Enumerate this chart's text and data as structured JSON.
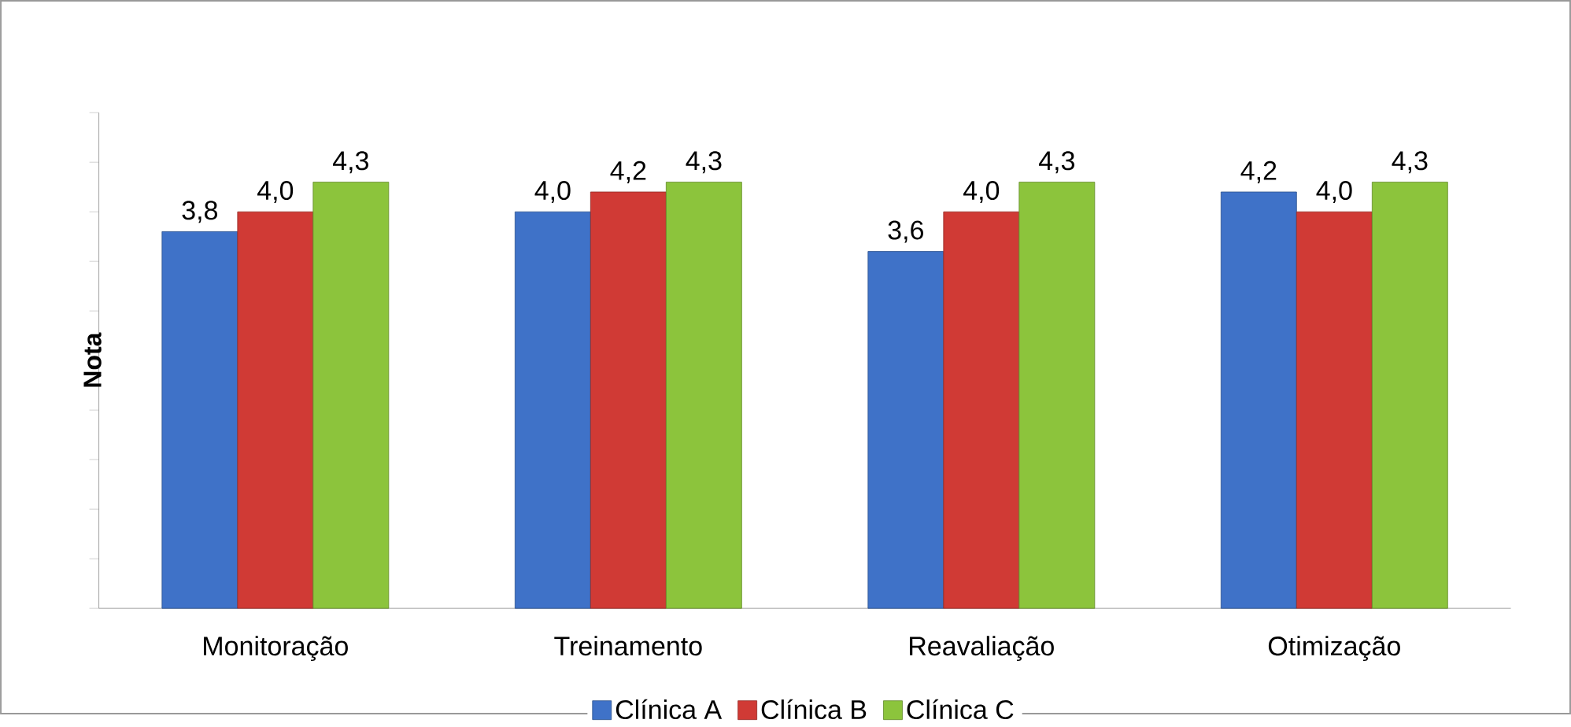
{
  "chart_data": {
    "type": "bar",
    "ylabel": "Nota",
    "categories": [
      "Monitoração",
      "Treinamento",
      "Reavaliação",
      "Otimização"
    ],
    "series": [
      {
        "name": "Clínica A",
        "color": "#3f72c8",
        "values": [
          3.8,
          4.0,
          3.6,
          4.2
        ],
        "value_labels": [
          "3,8",
          "4,0",
          "3,6",
          "4,2"
        ]
      },
      {
        "name": "Clínica B",
        "color": "#d03a35",
        "values": [
          4.0,
          4.2,
          4.0,
          4.0
        ],
        "value_labels": [
          "4,0",
          "4,2",
          "4,0",
          "4,0"
        ]
      },
      {
        "name": "Clínica C",
        "color": "#8cc43c",
        "values": [
          4.3,
          4.3,
          4.3,
          4.3
        ],
        "value_labels": [
          "4,3",
          "4,3",
          "4,3",
          "4,3"
        ]
      }
    ],
    "ylim": [
      0,
      5
    ],
    "yticks": [
      {
        "value": 0,
        "label": null
      },
      {
        "value": 0.5,
        "label": null
      },
      {
        "value": 1,
        "label": null
      },
      {
        "value": 1.5,
        "label": null
      },
      {
        "value": 2,
        "label": null
      },
      {
        "value": 2.5,
        "label": null
      },
      {
        "value": 3,
        "label": null
      },
      {
        "value": 3.5,
        "label": null
      },
      {
        "value": 4,
        "label": null
      },
      {
        "value": 4.5,
        "label": null
      },
      {
        "value": 5,
        "label": null
      }
    ],
    "tick_labels": "x",
    "grid": false,
    "legend": "bottom"
  }
}
